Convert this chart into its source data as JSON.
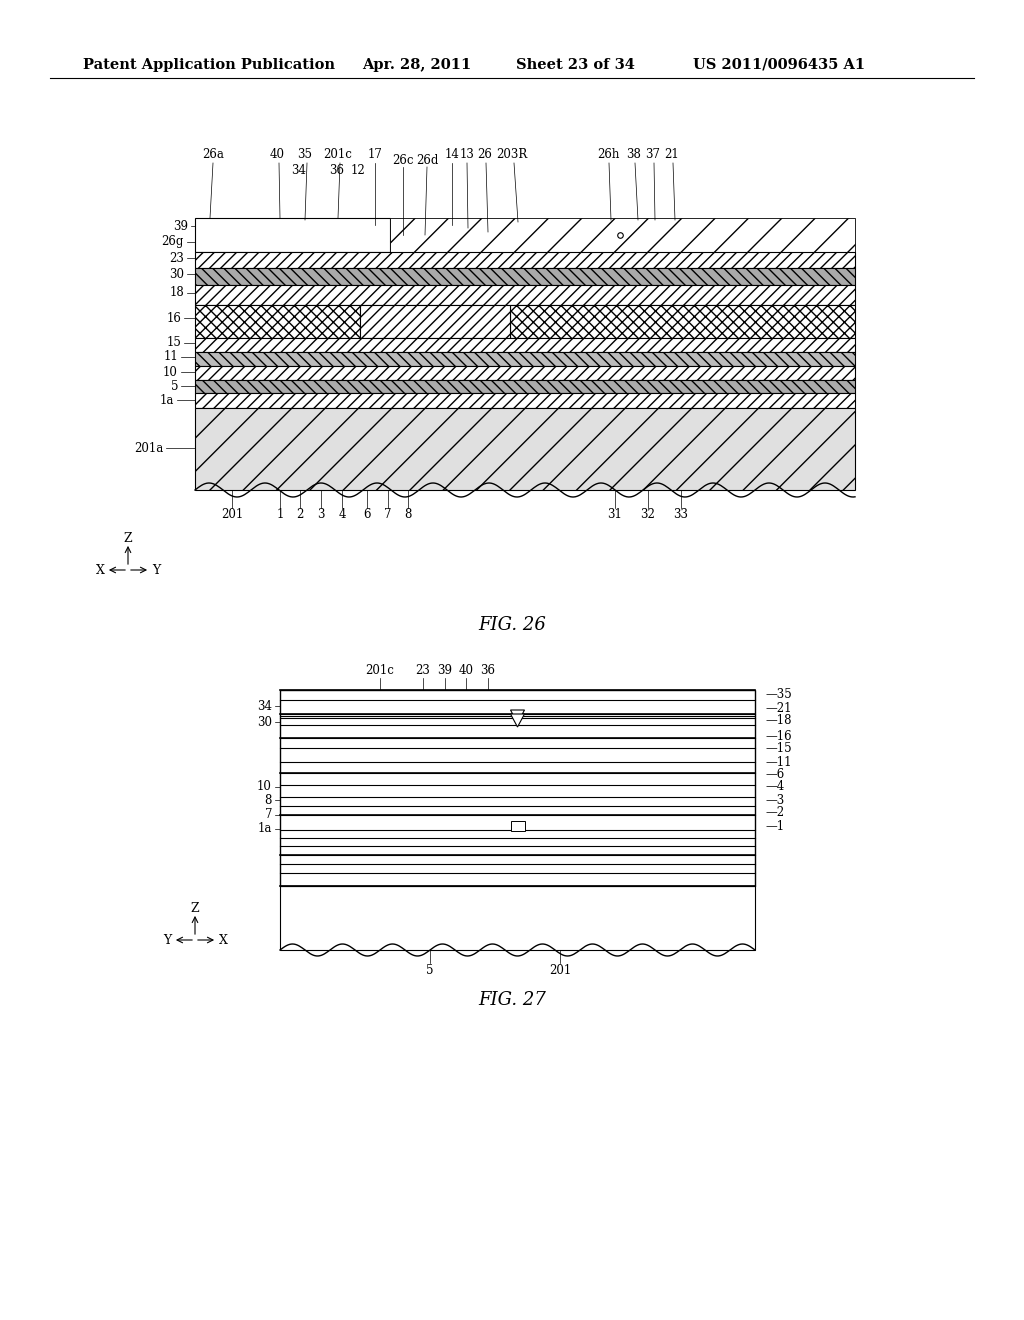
{
  "background_color": "#ffffff",
  "header_text": "Patent Application Publication",
  "header_date": "Apr. 28, 2011",
  "header_sheet": "Sheet 23 of 34",
  "header_patent": "US 2011/0096435 A1",
  "fig26_label": "FIG. 26",
  "fig27_label": "FIG. 27"
}
